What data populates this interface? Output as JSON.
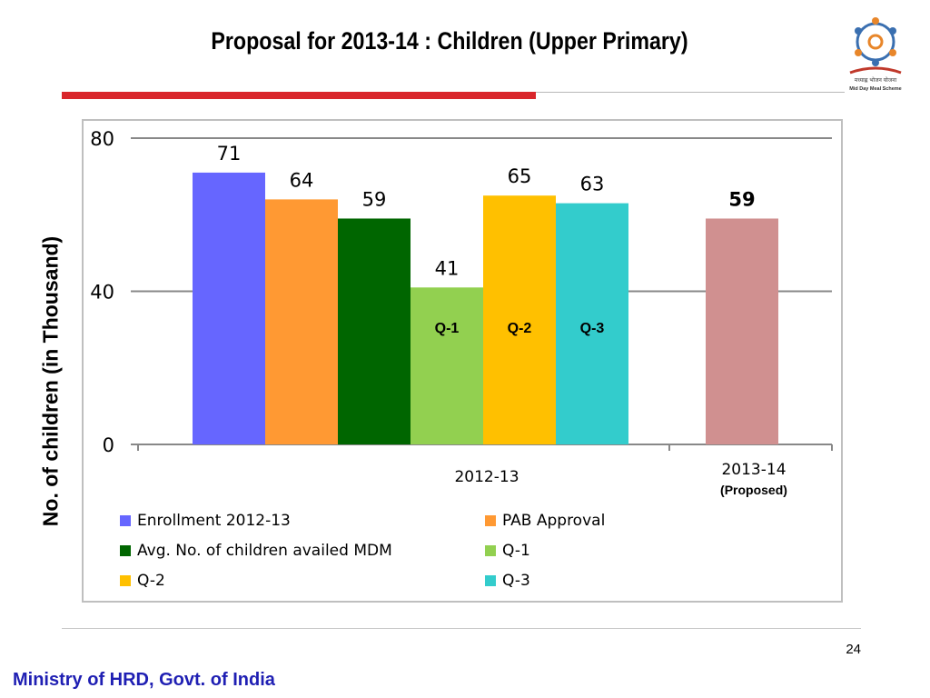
{
  "slide": {
    "title": "Proposal for 2013-14 : Children (Upper Primary)",
    "page_number": "24",
    "footer": "Ministry of HRD, Govt. of India",
    "logo_text": "मध्याह्न भोजन योजना",
    "logo_subtext": "Mid Day Meal Scheme"
  },
  "chart_data": {
    "type": "bar",
    "ylabel": "No. of children (in Thousand)",
    "ylim": [
      0,
      80
    ],
    "yticks": [
      0,
      40,
      80
    ],
    "grid": true,
    "legend_position": "bottom",
    "groups": [
      {
        "label": "2012-13",
        "sublabel": ""
      },
      {
        "label": "2013-14",
        "sublabel": "(Proposed)"
      }
    ],
    "bars": [
      {
        "series": "Enrollment 2012-13",
        "group": "2012-13",
        "value": 71,
        "color": "#6666ff",
        "inner_label": ""
      },
      {
        "series": "PAB Approval",
        "group": "2012-13",
        "value": 64,
        "color": "#ff9933",
        "inner_label": ""
      },
      {
        "series": "Avg. No. of children availed MDM",
        "group": "2012-13",
        "value": 59,
        "color": "#006600",
        "inner_label": ""
      },
      {
        "series": "Q-1",
        "group": "2012-13",
        "value": 41,
        "color": "#92d050",
        "inner_label": "Q-1"
      },
      {
        "series": "Q-2",
        "group": "2012-13",
        "value": 65,
        "color": "#ffc000",
        "inner_label": "Q-2"
      },
      {
        "series": "Q-3",
        "group": "2012-13",
        "value": 63,
        "color": "#33cccc",
        "inner_label": "Q-3"
      },
      {
        "series": "",
        "group": "2013-14",
        "value": 59,
        "color": "#d09090",
        "inner_label": "",
        "bold_label": true
      }
    ],
    "legend": [
      {
        "name": "Enrollment 2012-13",
        "color": "#6666ff"
      },
      {
        "name": "PAB Approval",
        "color": "#ff9933"
      },
      {
        "name": "Avg. No. of children availed MDM",
        "color": "#006600"
      },
      {
        "name": "Q-1",
        "color": "#92d050"
      },
      {
        "name": "Q-2",
        "color": "#ffc000"
      },
      {
        "name": "Q-3",
        "color": "#33cccc"
      }
    ]
  }
}
